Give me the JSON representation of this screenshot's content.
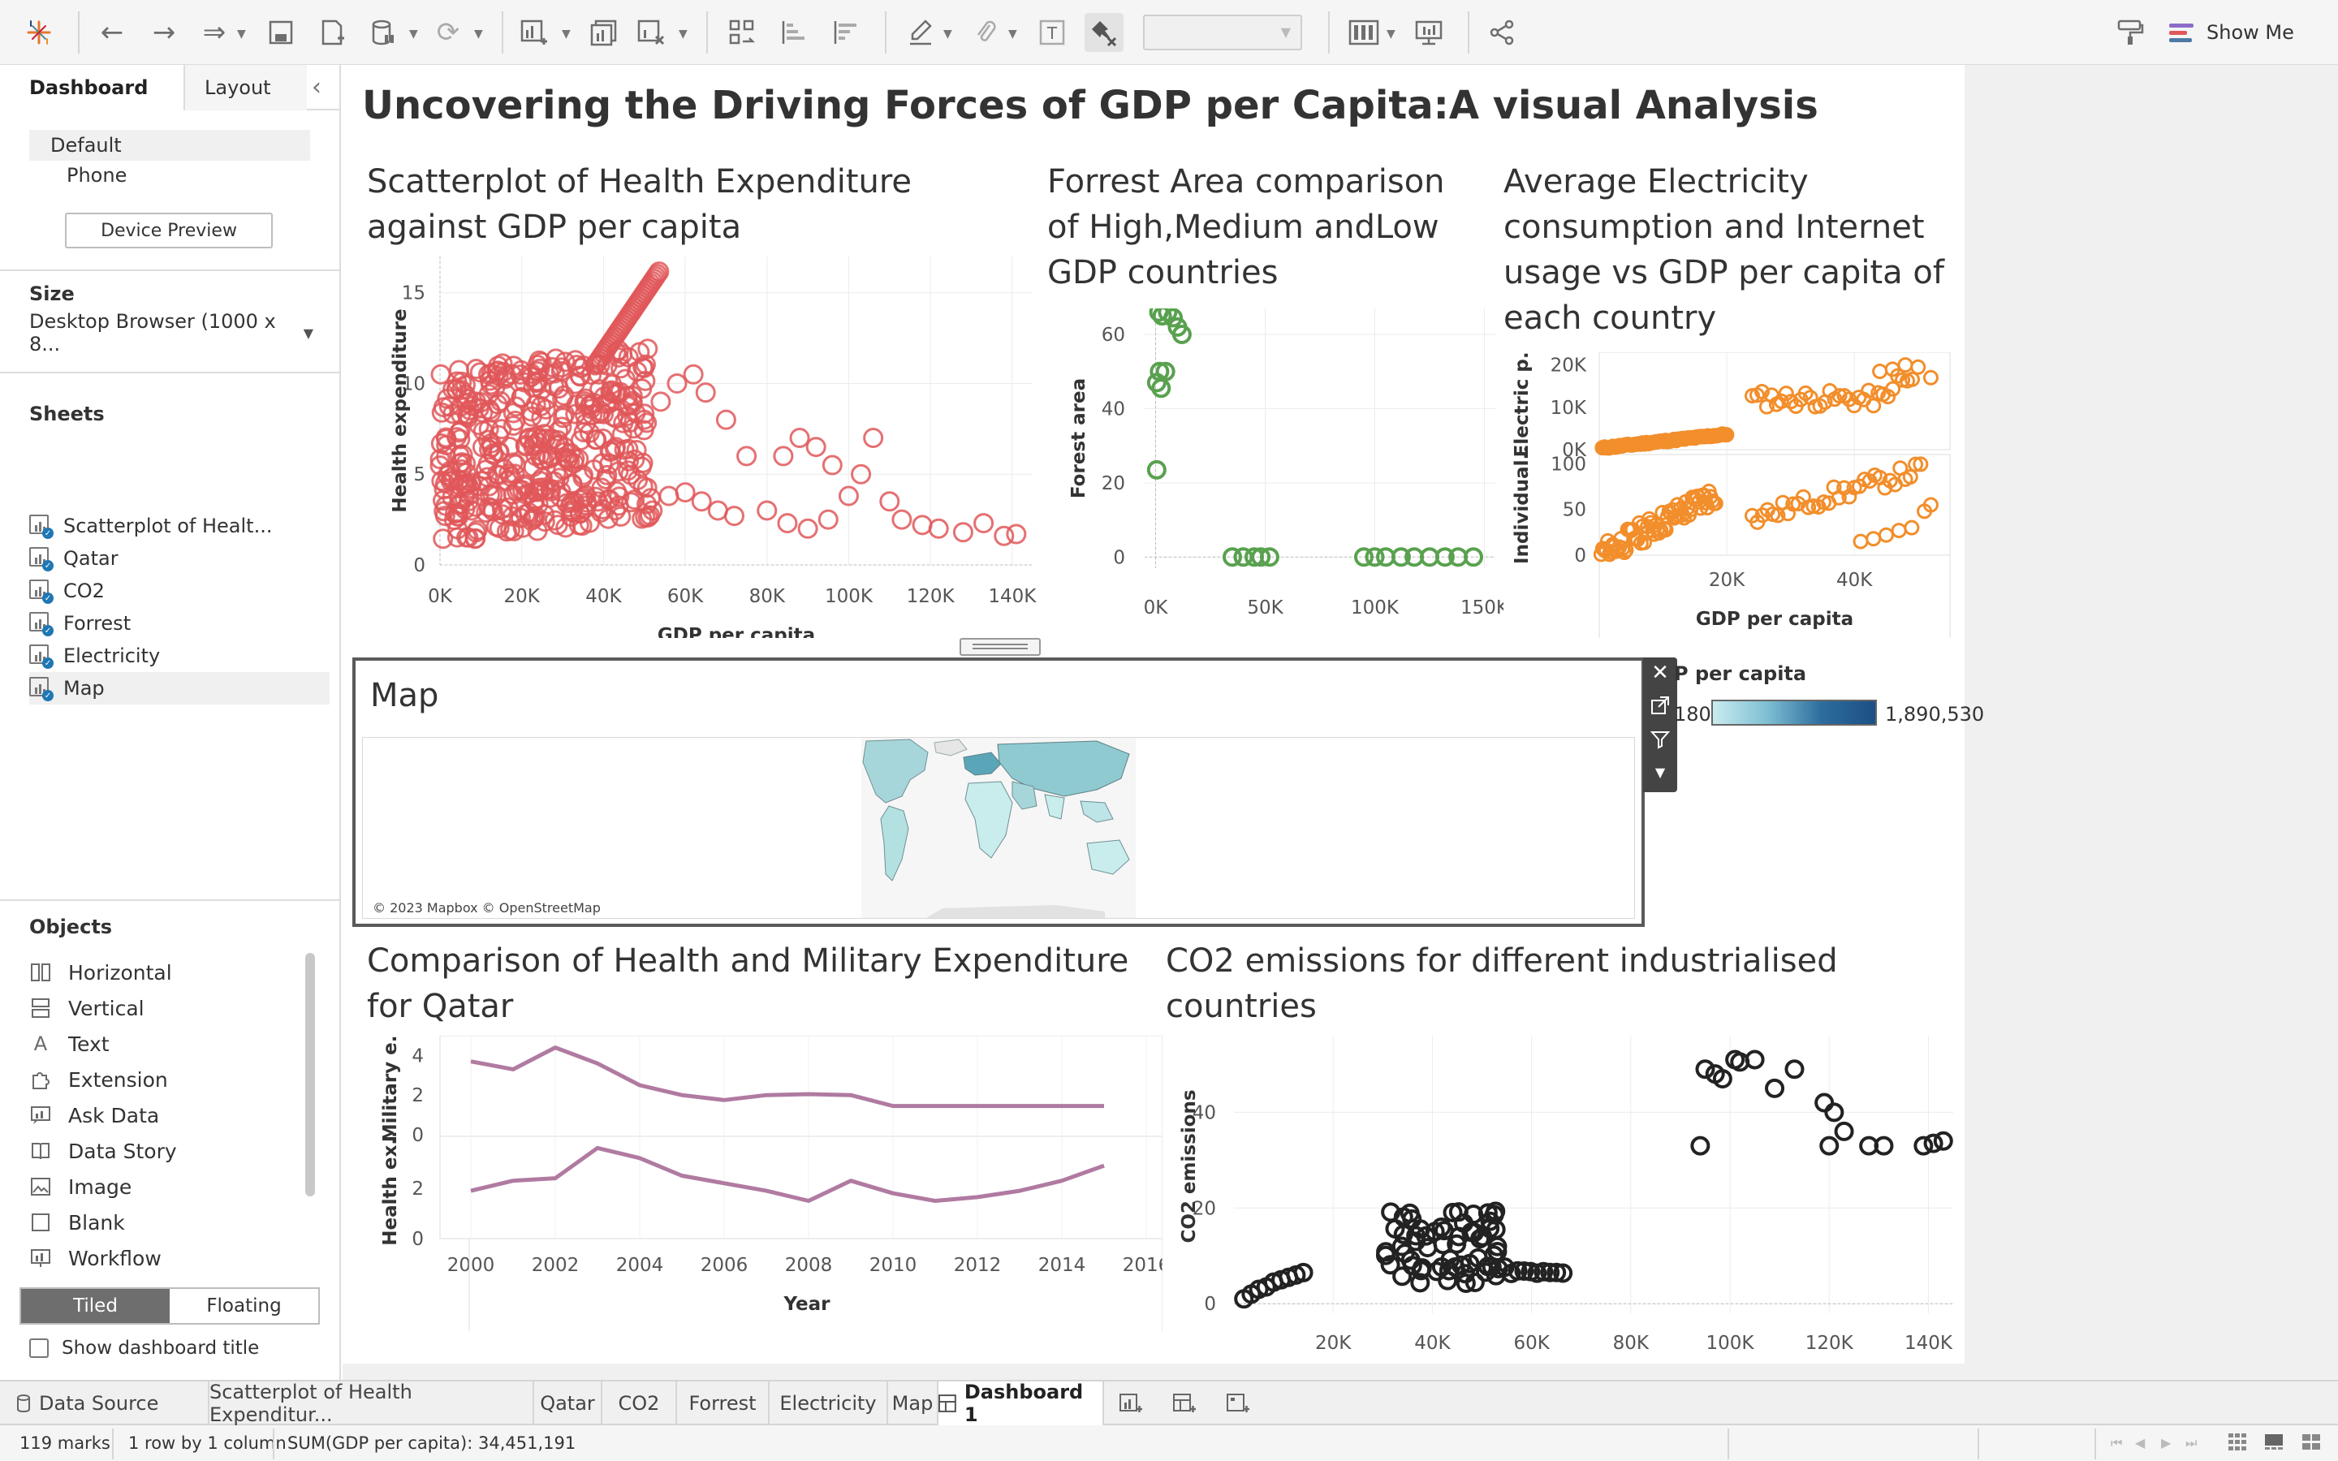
{
  "toolbar": {
    "show_me_label": "Show Me"
  },
  "left_panel": {
    "tabs": [
      "Dashboard",
      "Layout"
    ],
    "device_options": [
      "Default",
      "Phone"
    ],
    "device_preview_label": "Device Preview",
    "size_title": "Size",
    "size_value": "Desktop Browser (1000 x 8...",
    "sheets_title": "Sheets",
    "sheets": [
      "Scatterplot of Healt...",
      "Qatar",
      "CO2",
      "Forrest",
      "Electricity",
      "Map"
    ],
    "objects_title": "Objects",
    "objects": [
      "Horizontal",
      "Vertical",
      "Text",
      "Extension",
      "Ask Data",
      "Data Story",
      "Image",
      "Blank",
      "Workflow"
    ],
    "layout_modes": [
      "Tiled",
      "Floating"
    ],
    "show_title_label": "Show dashboard title"
  },
  "dashboard": {
    "title": "Uncovering the Driving Forces of GDP per Capita:A visual Analysis",
    "map": {
      "title": "Map",
      "credit": "© 2023 Mapbox © OpenStreetMap",
      "legend_title": "P per capita",
      "legend_min": "180",
      "legend_max": "1,890,530"
    }
  },
  "charts": {
    "health": {
      "title": "Scatterplot of Health Expenditure against GDP per capita",
      "type": "scatter",
      "xlabel": "GDP per capita",
      "ylabel": "Health expenditure",
      "x_ticks": [
        "0K",
        "20K",
        "40K",
        "60K",
        "80K",
        "100K",
        "120K",
        "140K"
      ],
      "y_ticks": [
        "0",
        "5",
        "10",
        "15"
      ],
      "xlim": [
        0,
        145000
      ],
      "ylim": [
        0,
        17
      ],
      "color": "#e15759"
    },
    "forest": {
      "title": "Forrest Area comparison of High,Medium  andLow GDP countries",
      "type": "scatter",
      "xlabel": "GDP per capita",
      "ylabel": "Forest area",
      "x_ticks": [
        "0K",
        "50K",
        "100K",
        "150K"
      ],
      "y_ticks": [
        "0",
        "20",
        "40",
        "60"
      ],
      "xlim": [
        -5000,
        155000
      ],
      "ylim": [
        -3,
        67
      ],
      "color": "#59a14f",
      "points": [
        [
          1500,
          66
        ],
        [
          3000,
          65
        ],
        [
          5500,
          66
        ],
        [
          8000,
          64.5
        ],
        [
          10000,
          62
        ],
        [
          12000,
          60
        ],
        [
          1800,
          50
        ],
        [
          4500,
          50
        ],
        [
          500,
          47
        ],
        [
          2500,
          45.5
        ],
        [
          500,
          23.5
        ],
        [
          35000,
          0
        ],
        [
          40000,
          0
        ],
        [
          45000,
          0
        ],
        [
          48000,
          0
        ],
        [
          52000,
          0
        ],
        [
          95000,
          0
        ],
        [
          100000,
          0
        ],
        [
          105000,
          0
        ],
        [
          112000,
          0
        ],
        [
          118000,
          0
        ],
        [
          125000,
          0
        ],
        [
          132000,
          0
        ],
        [
          138000,
          0
        ],
        [
          145000,
          0
        ]
      ]
    },
    "electricity": {
      "title": "Average Electricity consumption and Internet usage vs GDP per capita of each country",
      "type": "scatter",
      "xlabel": "GDP per capita",
      "ylabels": [
        "Electric p..",
        "Individual.."
      ],
      "x_ticks": [
        "20K",
        "40K"
      ],
      "top_y_ticks": [
        "0K",
        "10K",
        "20K"
      ],
      "bottom_y_ticks": [
        "0",
        "50",
        "100"
      ],
      "xlim": [
        0,
        55000
      ],
      "top_ylim": [
        0,
        23000
      ],
      "bottom_ylim": [
        0,
        110
      ],
      "color": "#f28e2b"
    },
    "qatar": {
      "title": "Comparison of Health and Military Expenditure for Qatar",
      "type": "line",
      "xlabel": "Year",
      "ylabels": [
        "Military e..",
        "Health ex.."
      ],
      "x_ticks": [
        "2000",
        "2002",
        "2004",
        "2006",
        "2008",
        "2010",
        "2012",
        "2014",
        "2016"
      ],
      "top_y_ticks": [
        "0",
        "2",
        "4"
      ],
      "bottom_y_ticks": [
        "0",
        "2"
      ],
      "color": "#b07aa1",
      "years": [
        2000,
        2001,
        2002,
        2003,
        2004,
        2005,
        2006,
        2007,
        2008,
        2009,
        2010,
        2011,
        2012,
        2013,
        2014,
        2015
      ],
      "military": [
        3.7,
        3.3,
        4.4,
        3.6,
        2.5,
        2.0,
        1.75,
        2.0,
        2.05,
        2.0,
        1.45,
        1.45,
        1.45,
        1.45,
        1.45,
        1.45
      ],
      "health": [
        1.9,
        2.3,
        2.4,
        3.6,
        3.2,
        2.5,
        2.2,
        1.9,
        1.5,
        2.3,
        1.8,
        1.5,
        1.65,
        1.9,
        2.3,
        2.9
      ]
    },
    "co2": {
      "title": "CO2 emissions for different industrialised countries",
      "type": "scatter",
      "xlabel": "GDP per capita",
      "ylabel": "CO2 emissions",
      "x_ticks": [
        "20K",
        "40K",
        "60K",
        "80K",
        "100K",
        "120K",
        "140K"
      ],
      "y_ticks": [
        "0",
        "20",
        "40"
      ],
      "xlim": [
        0,
        145000
      ],
      "ylim": [
        -2,
        56
      ],
      "color": "#222222",
      "points": [
        [
          2000,
          1
        ],
        [
          3500,
          2
        ],
        [
          5000,
          3
        ],
        [
          6500,
          3.5
        ],
        [
          8000,
          4.5
        ],
        [
          9500,
          5
        ],
        [
          11000,
          5.5
        ],
        [
          12500,
          6
        ],
        [
          14000,
          6.5
        ],
        [
          94000,
          33
        ],
        [
          95000,
          49
        ],
        [
          97000,
          48
        ],
        [
          98500,
          47
        ],
        [
          101000,
          51
        ],
        [
          102000,
          50.5
        ],
        [
          105000,
          51
        ],
        [
          109000,
          45
        ],
        [
          113000,
          49
        ],
        [
          119000,
          42
        ],
        [
          121000,
          40
        ],
        [
          123000,
          36
        ],
        [
          120000,
          33
        ],
        [
          128000,
          33
        ],
        [
          131000,
          33
        ],
        [
          139000,
          33
        ],
        [
          141000,
          33.5
        ],
        [
          143000,
          34
        ]
      ]
    }
  }
}
